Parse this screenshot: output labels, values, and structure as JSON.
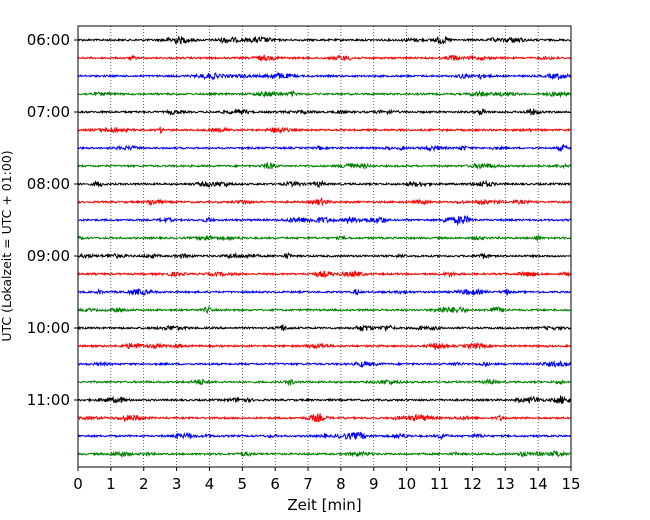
{
  "chart_data": {
    "type": "line",
    "xlabel": "Zeit  [min]",
    "ylabel": "UTC (Lokalzeit = UTC + 01:00)",
    "xlim": [
      0,
      15
    ],
    "x_ticks": [
      0,
      1,
      2,
      3,
      4,
      5,
      6,
      7,
      8,
      9,
      10,
      11,
      12,
      13,
      14,
      15
    ],
    "y_tick_labels": [
      "06:00",
      "07:00",
      "08:00",
      "09:00",
      "10:00",
      "11:00"
    ],
    "grid": "vertical-dotted",
    "trace_interval_minutes": 15,
    "trace_colors": [
      "#000000",
      "#ff0000",
      "#0000ff",
      "#008000"
    ],
    "traces_utc_start": [
      "06:00",
      "06:15",
      "06:30",
      "06:45",
      "07:00",
      "07:15",
      "07:30",
      "07:45",
      "08:00",
      "08:15",
      "08:30",
      "08:45",
      "09:00",
      "09:15",
      "09:30",
      "09:45",
      "10:00",
      "10:15",
      "10:30",
      "10:45",
      "11:00",
      "11:15",
      "11:30",
      "11:45"
    ]
  }
}
